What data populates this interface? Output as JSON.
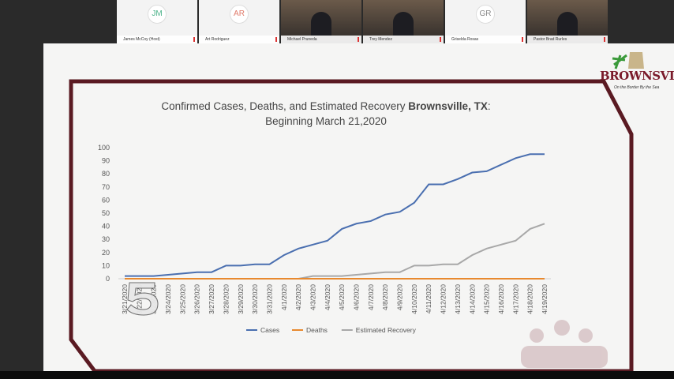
{
  "participants": [
    {
      "initials": "JM",
      "name": "James McCoy (Host)",
      "video": false,
      "color": "#4cb38a"
    },
    {
      "initials": "AR",
      "name": "Art Rodriguez",
      "video": false,
      "color": "#e07a6a"
    },
    {
      "initials": "",
      "name": "Michael Pruneda",
      "video": true
    },
    {
      "initials": "",
      "name": "Trey Mendez",
      "video": true
    },
    {
      "initials": "GR",
      "name": "Griselda Rosas",
      "video": false,
      "color": "#888888"
    },
    {
      "initials": "",
      "name": "Pastor Brad Rurles",
      "video": true
    }
  ],
  "logo": {
    "text": "BROWNSVILLE",
    "tagline": "On the Border By the Sea"
  },
  "watermark": "5",
  "chart_data": {
    "type": "line",
    "title_line1": "Confirmed Cases, Deaths, and Estimated Recovery ",
    "title_bold": "Brownsville, TX",
    "title_colon": ":",
    "title_line2": "Beginning March 21,2020",
    "ylim": [
      0,
      100
    ],
    "yticks": [
      0,
      10,
      20,
      30,
      40,
      50,
      60,
      70,
      80,
      90,
      100
    ],
    "grid": false,
    "legend": "bottom",
    "x": [
      "3/21/2020",
      "3/22/2020",
      "3/23/2020",
      "3/24/2020",
      "3/25/2020",
      "3/26/2020",
      "3/27/2020",
      "3/28/2020",
      "3/29/2020",
      "3/30/2020",
      "3/31/2020",
      "4/1/2020",
      "4/2/2020",
      "4/3/2020",
      "4/4/2020",
      "4/5/2020",
      "4/6/2020",
      "4/7/2020",
      "4/8/2020",
      "4/9/2020",
      "4/10/2020",
      "4/11/2020",
      "4/12/2020",
      "4/13/2020",
      "4/14/2020",
      "4/15/2020",
      "4/16/2020",
      "4/17/2020",
      "4/18/2020",
      "4/19/2020"
    ],
    "series": [
      {
        "name": "Cases",
        "color": "#4a6fb0",
        "values": [
          2,
          2,
          2,
          3,
          4,
          5,
          5,
          10,
          10,
          11,
          11,
          18,
          23,
          26,
          29,
          38,
          42,
          44,
          49,
          51,
          58,
          72,
          72,
          76,
          81,
          82,
          87,
          92,
          95,
          95
        ]
      },
      {
        "name": "Deaths",
        "color": "#e8892e",
        "values": [
          0,
          0,
          0,
          0,
          0,
          0,
          0,
          0,
          0,
          0,
          0,
          0,
          0,
          0,
          0,
          0,
          0,
          0,
          0,
          0,
          0,
          0,
          0,
          0,
          0,
          0,
          0,
          0,
          0,
          0
        ]
      },
      {
        "name": "Estimated Recovery",
        "color": "#a8a8a8",
        "values": [
          0,
          0,
          0,
          0,
          0,
          0,
          0,
          0,
          0,
          0,
          0,
          0,
          0,
          2,
          2,
          2,
          3,
          4,
          5,
          5,
          10,
          10,
          11,
          11,
          18,
          23,
          26,
          29,
          38,
          42
        ]
      }
    ]
  }
}
